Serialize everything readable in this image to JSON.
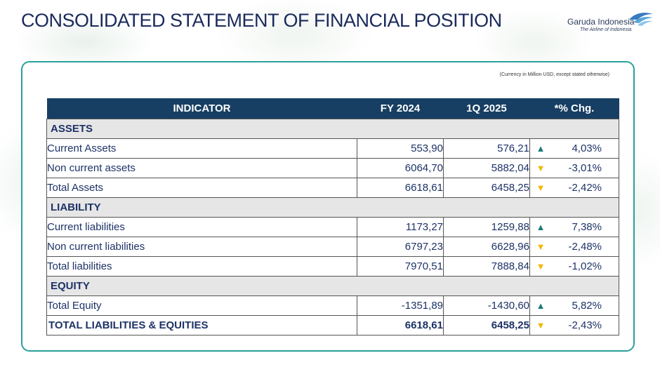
{
  "header": {
    "title": "CONSOLIDATED STATEMENT OF FINANCIAL POSITION",
    "logo_name": "Garuda Indonesia",
    "logo_tagline": "The Airline of Indonesia"
  },
  "note": "(Currency in Million USD, except stated otherwise)",
  "table": {
    "headers": [
      "INDICATOR",
      "FY 2024",
      "1Q 2025",
      "*% Chg."
    ],
    "sections": [
      {
        "name": "ASSETS",
        "rows": [
          {
            "label": "Current Assets",
            "fy2024": "553,90",
            "q1_2025": "576,21",
            "direction": "up",
            "change": "4,03%"
          },
          {
            "label": "Non current  assets",
            "fy2024": "6064,70",
            "q1_2025": "5882,04",
            "direction": "down",
            "change": "-3,01%"
          },
          {
            "label": "Total Assets",
            "fy2024": "6618,61",
            "q1_2025": "6458,25",
            "direction": "down",
            "change": "-2,42%"
          }
        ]
      },
      {
        "name": "LIABILITY",
        "rows": [
          {
            "label": "Current liabilities",
            "fy2024": "1173,27",
            "q1_2025": "1259,88",
            "direction": "up",
            "change": "7,38%"
          },
          {
            "label": "Non current liabilities",
            "fy2024": "6797,23",
            "q1_2025": "6628,96",
            "direction": "down",
            "change": "-2,48%"
          },
          {
            "label": "Total liabilities",
            "fy2024": "7970,51",
            "q1_2025": "7888,84",
            "direction": "down",
            "change": "-1,02%"
          }
        ]
      },
      {
        "name": "EQUITY",
        "rows": [
          {
            "label": "Total Equity",
            "fy2024": "-1351,89",
            "q1_2025": "-1430,60",
            "direction": "up",
            "change": "5,82%"
          }
        ]
      }
    ],
    "total": {
      "label": "TOTAL LIABILITIES & EQUITIES",
      "fy2024": "6618,61",
      "q1_2025": "6458,25",
      "direction": "down",
      "change": "-2,43%"
    }
  },
  "colors": {
    "header_bg": "#173f63",
    "section_bg": "#e6e6e6",
    "frame": "#2aa09a",
    "up_arrow": "#1d7a78",
    "down_arrow": "#f3b800",
    "text": "#1d3266"
  }
}
